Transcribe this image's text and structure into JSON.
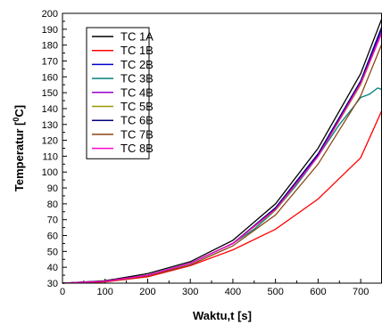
{
  "chart_data": {
    "type": "line",
    "xlabel": "Waktu,t [s]",
    "ylabel_main": "Temperatur [",
    "ylabel_sup": "0",
    "ylabel_end": "C]",
    "xlim": [
      0,
      750
    ],
    "ylim": [
      30,
      200
    ],
    "x_ticks": [
      0,
      100,
      200,
      300,
      400,
      500,
      600,
      700
    ],
    "y_ticks": [
      30,
      40,
      50,
      60,
      70,
      80,
      90,
      100,
      110,
      120,
      130,
      140,
      150,
      160,
      170,
      180,
      190,
      200
    ],
    "grid": false,
    "legend_position": "top-left",
    "series": [
      {
        "name": "TC 1A",
        "color": "#000000",
        "x": [
          0,
          100,
          200,
          300,
          400,
          500,
          600,
          700,
          750
        ],
        "y": [
          30,
          31.5,
          36,
          43.5,
          57,
          80,
          115,
          162,
          197
        ]
      },
      {
        "name": "TC 1B",
        "color": "#ff0000",
        "x": [
          0,
          100,
          200,
          300,
          400,
          500,
          600,
          700,
          750
        ],
        "y": [
          30,
          30.8,
          34,
          41,
          51,
          64,
          83,
          109,
          139
        ]
      },
      {
        "name": "TC 2B",
        "color": "#0000cc",
        "x": [
          0,
          100,
          200,
          300,
          400,
          500,
          600,
          700,
          750
        ],
        "y": [
          30,
          31.2,
          35,
          42.5,
          55,
          77,
          111,
          157,
          191
        ]
      },
      {
        "name": "TC 3B",
        "color": "#008080",
        "x": [
          0,
          100,
          200,
          300,
          400,
          450,
          500,
          550,
          600,
          650,
          680,
          700,
          720,
          740,
          750
        ],
        "y": [
          30,
          31.2,
          35,
          42.5,
          55,
          64,
          76,
          92,
          110,
          130,
          140,
          147,
          149,
          153,
          152
        ]
      },
      {
        "name": "TC 4B",
        "color": "#9900cc",
        "x": [
          0,
          100,
          200,
          300,
          400,
          500,
          600,
          700,
          750
        ],
        "y": [
          30,
          31.2,
          35,
          42.5,
          55,
          76.5,
          110,
          156,
          189
        ]
      },
      {
        "name": "TC 5B",
        "color": "#999900",
        "x": [
          0,
          100,
          200,
          300,
          400,
          500,
          600,
          700,
          750
        ],
        "y": [
          30,
          31.2,
          35,
          42.5,
          55,
          76,
          110,
          155,
          188
        ]
      },
      {
        "name": "TC 6B",
        "color": "#000080",
        "x": [
          0,
          100,
          200,
          300,
          400,
          500,
          600,
          700,
          750
        ],
        "y": [
          30,
          31.2,
          35,
          42.5,
          55,
          77.5,
          111.5,
          157.5,
          192
        ]
      },
      {
        "name": "TC 7B",
        "color": "#8b4513",
        "x": [
          0,
          100,
          200,
          300,
          400,
          500,
          600,
          700,
          750
        ],
        "y": [
          30,
          31,
          34.5,
          41.5,
          53.5,
          73,
          105,
          148,
          181
        ]
      },
      {
        "name": "TC 8B",
        "color": "#ff00cc",
        "x": [
          0,
          100,
          200,
          300,
          400,
          500,
          600,
          700,
          750
        ],
        "y": [
          30,
          31.2,
          35,
          42.5,
          55,
          76.5,
          110,
          156,
          188
        ]
      }
    ]
  }
}
